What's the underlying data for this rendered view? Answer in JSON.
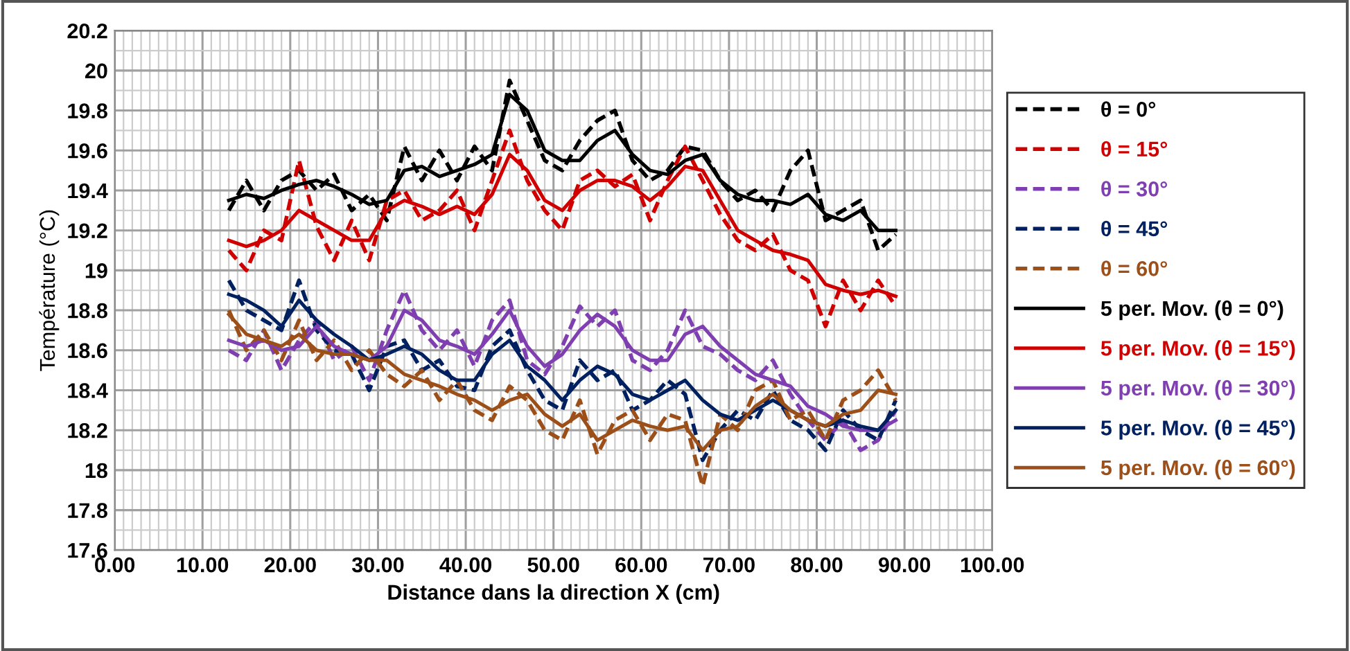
{
  "chart_data": {
    "type": "line",
    "xlabel": "Distance dans la direction X (cm)",
    "ylabel": "Température (°C)",
    "x": [
      13,
      15,
      17,
      19,
      21,
      23,
      25,
      27,
      29,
      31,
      33,
      35,
      37,
      39,
      41,
      43,
      45,
      47,
      49,
      51,
      53,
      55,
      57,
      59,
      61,
      63,
      65,
      67,
      69,
      71,
      73,
      75,
      77,
      79,
      81,
      83,
      85,
      87,
      89
    ],
    "xlim": [
      0,
      100
    ],
    "xticks": [
      {
        "value": 0,
        "label": "0.00"
      },
      {
        "value": 10,
        "label": "10.00"
      },
      {
        "value": 20,
        "label": "20.00"
      },
      {
        "value": 30,
        "label": "30.00"
      },
      {
        "value": 40,
        "label": "40.00"
      },
      {
        "value": 50,
        "label": "50.00"
      },
      {
        "value": 60,
        "label": "60.00"
      },
      {
        "value": 70,
        "label": "70.00"
      },
      {
        "value": 80,
        "label": "80.00"
      },
      {
        "value": 90,
        "label": "90.00"
      },
      {
        "value": 100,
        "label": "100.00"
      }
    ],
    "ylim": [
      17.6,
      20.2
    ],
    "yticks": [
      17.6,
      17.8,
      18,
      18.2,
      18.4,
      18.6,
      18.8,
      19,
      19.2,
      19.4,
      19.6,
      19.8,
      20,
      20.2
    ],
    "grid": true,
    "legend": "right",
    "marker": "none",
    "series": [
      {
        "name": "θ = 0°",
        "color": "#000000",
        "line_style": "dashed",
        "values": [
          19.3,
          19.45,
          19.3,
          19.45,
          19.5,
          19.4,
          19.48,
          19.3,
          19.38,
          19.25,
          19.62,
          19.45,
          19.6,
          19.45,
          19.62,
          19.5,
          19.95,
          19.75,
          19.55,
          19.5,
          19.65,
          19.75,
          19.8,
          19.55,
          19.45,
          19.5,
          19.62,
          19.6,
          19.45,
          19.35,
          19.4,
          19.3,
          19.5,
          19.6,
          19.25,
          19.3,
          19.35,
          19.1,
          19.18
        ]
      },
      {
        "name": "θ = 15°",
        "color": "#d00000",
        "line_style": "dashed",
        "values": [
          19.1,
          19.0,
          19.2,
          19.15,
          19.55,
          19.22,
          19.05,
          19.25,
          19.05,
          19.35,
          19.4,
          19.25,
          19.3,
          19.4,
          19.2,
          19.45,
          19.7,
          19.45,
          19.3,
          19.2,
          19.45,
          19.5,
          19.42,
          19.48,
          19.25,
          19.45,
          19.62,
          19.45,
          19.28,
          19.15,
          19.1,
          19.18,
          19.0,
          18.95,
          18.72,
          18.95,
          18.8,
          18.95,
          18.82
        ]
      },
      {
        "name": "θ = 30°",
        "color": "#7f3fb0",
        "line_style": "dashed",
        "values": [
          18.6,
          18.55,
          18.7,
          18.5,
          18.65,
          18.75,
          18.55,
          18.62,
          18.45,
          18.7,
          18.9,
          18.7,
          18.6,
          18.7,
          18.52,
          18.75,
          18.85,
          18.55,
          18.48,
          18.62,
          18.82,
          18.72,
          18.8,
          18.55,
          18.5,
          18.6,
          18.8,
          18.62,
          18.58,
          18.5,
          18.45,
          18.55,
          18.38,
          18.25,
          18.15,
          18.25,
          18.1,
          18.15,
          18.3
        ]
      },
      {
        "name": "θ = 45°",
        "color": "#002060",
        "line_style": "dashed",
        "values": [
          18.95,
          18.8,
          18.75,
          18.7,
          18.95,
          18.7,
          18.6,
          18.58,
          18.4,
          18.62,
          18.65,
          18.5,
          18.55,
          18.42,
          18.4,
          18.62,
          18.7,
          18.5,
          18.35,
          18.3,
          18.55,
          18.45,
          18.5,
          18.3,
          18.35,
          18.45,
          18.38,
          18.05,
          18.2,
          18.3,
          18.25,
          18.4,
          18.25,
          18.2,
          18.1,
          18.3,
          18.2,
          18.15,
          18.35
        ]
      },
      {
        "name": "θ = 60°",
        "color": "#9c4f18",
        "line_style": "dashed",
        "values": [
          18.8,
          18.6,
          18.7,
          18.55,
          18.75,
          18.55,
          18.65,
          18.5,
          18.6,
          18.48,
          18.42,
          18.5,
          18.35,
          18.45,
          18.3,
          18.25,
          18.42,
          18.35,
          18.2,
          18.15,
          18.35,
          18.08,
          18.25,
          18.3,
          18.15,
          18.28,
          18.25,
          17.92,
          18.28,
          18.2,
          18.4,
          18.45,
          18.25,
          18.3,
          18.15,
          18.35,
          18.4,
          18.5,
          18.35
        ]
      },
      {
        "name": "5 per. Mov. (θ = 0°)",
        "color": "#000000",
        "line_style": "solid",
        "values": [
          19.35,
          19.38,
          19.36,
          19.4,
          19.43,
          19.45,
          19.42,
          19.38,
          19.33,
          19.35,
          19.5,
          19.52,
          19.47,
          19.5,
          19.53,
          19.58,
          19.88,
          19.8,
          19.6,
          19.55,
          19.55,
          19.65,
          19.7,
          19.58,
          19.5,
          19.48,
          19.55,
          19.58,
          19.45,
          19.38,
          19.35,
          19.35,
          19.33,
          19.38,
          19.28,
          19.25,
          19.3,
          19.2,
          19.2
        ]
      },
      {
        "name": "5 per. Mov. (θ = 15°)",
        "color": "#d00000",
        "line_style": "solid",
        "values": [
          19.15,
          19.12,
          19.15,
          19.2,
          19.3,
          19.25,
          19.2,
          19.15,
          19.15,
          19.3,
          19.35,
          19.32,
          19.28,
          19.32,
          19.28,
          19.38,
          19.58,
          19.5,
          19.35,
          19.3,
          19.4,
          19.45,
          19.45,
          19.42,
          19.35,
          19.42,
          19.52,
          19.5,
          19.35,
          19.2,
          19.15,
          19.1,
          19.08,
          19.05,
          18.93,
          18.9,
          18.88,
          18.9,
          18.87
        ]
      },
      {
        "name": "5 per. Mov. (θ = 30°)",
        "color": "#7f3fb0",
        "line_style": "solid",
        "values": [
          18.65,
          18.62,
          18.65,
          18.6,
          18.62,
          18.72,
          18.62,
          18.58,
          18.55,
          18.62,
          18.8,
          18.75,
          18.65,
          18.62,
          18.58,
          18.68,
          18.8,
          18.62,
          18.52,
          18.58,
          18.7,
          18.78,
          18.72,
          18.6,
          18.55,
          18.55,
          18.68,
          18.72,
          18.62,
          18.55,
          18.48,
          18.45,
          18.42,
          18.32,
          18.28,
          18.22,
          18.2,
          18.2,
          18.25
        ]
      },
      {
        "name": "5 per. Mov. (θ = 45°)",
        "color": "#002060",
        "line_style": "solid",
        "values": [
          18.88,
          18.85,
          18.8,
          18.72,
          18.85,
          18.75,
          18.68,
          18.62,
          18.55,
          18.58,
          18.62,
          18.58,
          18.5,
          18.45,
          18.45,
          18.58,
          18.65,
          18.52,
          18.45,
          18.35,
          18.45,
          18.52,
          18.48,
          18.38,
          18.35,
          18.4,
          18.45,
          18.35,
          18.28,
          18.25,
          18.3,
          18.35,
          18.3,
          18.25,
          18.22,
          18.25,
          18.22,
          18.2,
          18.3
        ]
      },
      {
        "name": "5 per. Mov. (θ = 60°)",
        "color": "#9c4f18",
        "line_style": "solid",
        "values": [
          18.78,
          18.68,
          18.65,
          18.62,
          18.68,
          18.6,
          18.58,
          18.58,
          18.55,
          18.55,
          18.48,
          18.45,
          18.42,
          18.38,
          18.35,
          18.3,
          18.35,
          18.38,
          18.28,
          18.22,
          18.28,
          18.15,
          18.2,
          18.25,
          18.22,
          18.2,
          18.22,
          18.1,
          18.2,
          18.22,
          18.32,
          18.38,
          18.3,
          18.25,
          18.22,
          18.28,
          18.3,
          18.4,
          18.38
        ]
      }
    ]
  }
}
